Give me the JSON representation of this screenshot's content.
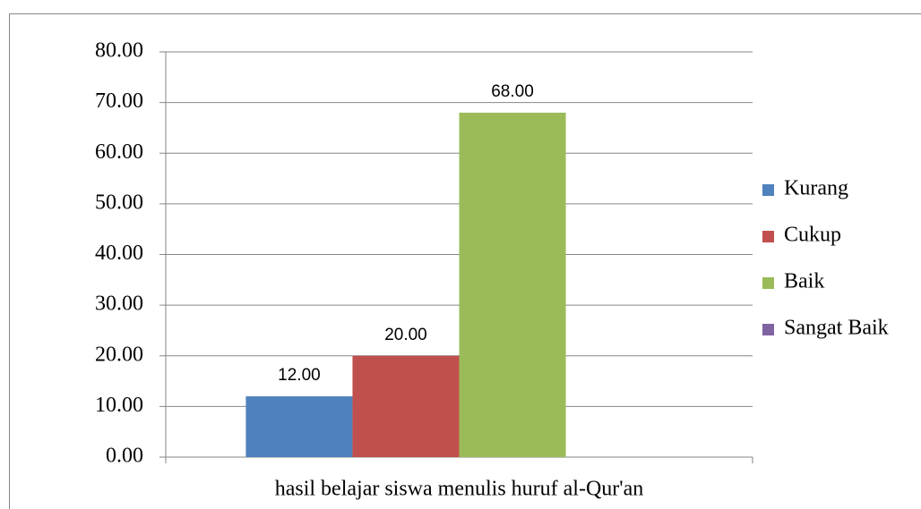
{
  "chart_data": {
    "type": "bar",
    "categories": [
      "hasil belajar siswa menulis huruf al-Qur'an"
    ],
    "series": [
      {
        "name": "Kurang",
        "color": "#4f81bd",
        "values": [
          12
        ],
        "value_labels": [
          "12.00"
        ]
      },
      {
        "name": "Cukup",
        "color": "#c0504d",
        "values": [
          20
        ],
        "value_labels": [
          "20.00"
        ]
      },
      {
        "name": "Baik",
        "color": "#9bbb59",
        "values": [
          68
        ],
        "value_labels": [
          "68.00"
        ]
      },
      {
        "name": "Sangat Baik",
        "color": "#8064a2",
        "values": [
          null
        ]
      }
    ],
    "ylim": [
      0,
      80
    ],
    "yticks": [
      {
        "value": 0,
        "label": "0.00"
      },
      {
        "value": 10,
        "label": "10.00"
      },
      {
        "value": 20,
        "label": "20.00"
      },
      {
        "value": 30,
        "label": "30.00"
      },
      {
        "value": 40,
        "label": "40.00"
      },
      {
        "value": 50,
        "label": "50.00"
      },
      {
        "value": 60,
        "label": "60.00"
      },
      {
        "value": 70,
        "label": "70.00"
      },
      {
        "value": 80,
        "label": "80.00"
      }
    ],
    "grid": true,
    "legend": "right"
  }
}
